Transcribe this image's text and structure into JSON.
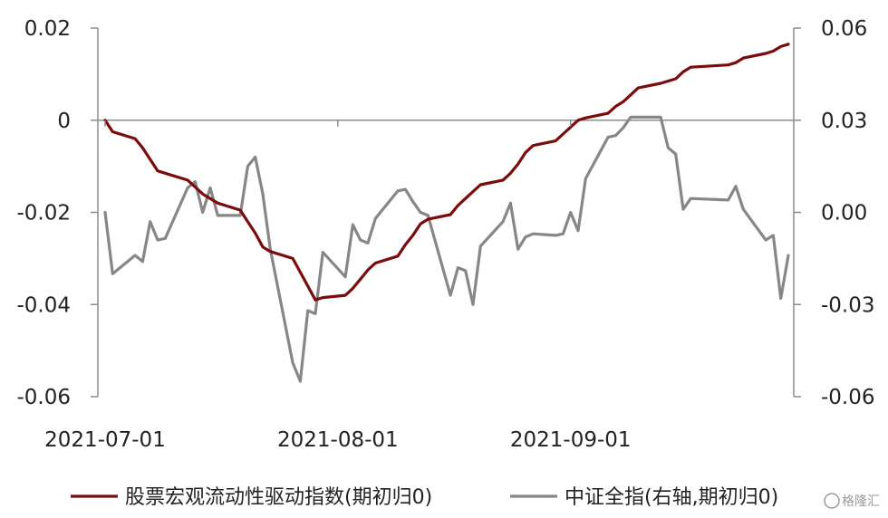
{
  "chart_data": {
    "type": "line",
    "x_tick_labels": [
      "2021-07-01",
      "2021-08-01",
      "2021-09-01"
    ],
    "left_axis": {
      "ylim": [
        -0.06,
        0.02
      ],
      "ticks": [
        "0.02",
        "0",
        "-0.02",
        "-0.04",
        "-0.06"
      ]
    },
    "right_axis": {
      "ylim": [
        -0.06,
        0.06
      ],
      "ticks": [
        "0.06",
        "0.03",
        "0.00",
        "-0.03",
        "-0.06"
      ]
    },
    "grid": false,
    "legend_placement": "bottom",
    "series": [
      {
        "name": "股票宏观流动性驱动指数(期初归0)",
        "axis": "left",
        "color": "#7a0c0c",
        "x": [
          "2021-07-01",
          "2021-07-02",
          "2021-07-05",
          "2021-07-06",
          "2021-07-07",
          "2021-07-08",
          "2021-07-09",
          "2021-07-12",
          "2021-07-13",
          "2021-07-14",
          "2021-07-15",
          "2021-07-16",
          "2021-07-19",
          "2021-07-20",
          "2021-07-21",
          "2021-07-22",
          "2021-07-23",
          "2021-07-26",
          "2021-07-27",
          "2021-07-28",
          "2021-07-29",
          "2021-07-30",
          "2021-08-02",
          "2021-08-03",
          "2021-08-04",
          "2021-08-05",
          "2021-08-06",
          "2021-08-09",
          "2021-08-10",
          "2021-08-11",
          "2021-08-12",
          "2021-08-13",
          "2021-08-16",
          "2021-08-17",
          "2021-08-18",
          "2021-08-19",
          "2021-08-20",
          "2021-08-23",
          "2021-08-24",
          "2021-08-25",
          "2021-08-26",
          "2021-08-27",
          "2021-08-30",
          "2021-08-31",
          "2021-09-01",
          "2021-09-02",
          "2021-09-03",
          "2021-09-06",
          "2021-09-07",
          "2021-09-08",
          "2021-09-09",
          "2021-09-10",
          "2021-09-13",
          "2021-09-14",
          "2021-09-15",
          "2021-09-16",
          "2021-09-17",
          "2021-09-22",
          "2021-09-23",
          "2021-09-24",
          "2021-09-27",
          "2021-09-28",
          "2021-09-29",
          "2021-09-30"
        ],
        "values": [
          0.0,
          -0.0025,
          -0.004,
          -0.006,
          -0.0085,
          -0.011,
          -0.0115,
          -0.013,
          -0.0145,
          -0.016,
          -0.017,
          -0.018,
          -0.0195,
          -0.022,
          -0.0245,
          -0.0275,
          -0.0285,
          -0.03,
          -0.033,
          -0.036,
          -0.039,
          -0.0385,
          -0.038,
          -0.0365,
          -0.0345,
          -0.0325,
          -0.031,
          -0.0295,
          -0.027,
          -0.025,
          -0.0225,
          -0.0215,
          -0.0205,
          -0.0185,
          -0.017,
          -0.0155,
          -0.014,
          -0.013,
          -0.0115,
          -0.0095,
          -0.007,
          -0.0055,
          -0.0045,
          -0.003,
          -0.0015,
          0.0,
          0.0005,
          0.0015,
          0.003,
          0.004,
          0.0055,
          0.007,
          0.008,
          0.0085,
          0.009,
          0.0105,
          0.0115,
          0.012,
          0.0125,
          0.0135,
          0.0145,
          0.015,
          0.016,
          0.0165
        ]
      },
      {
        "name": "中证全指(右轴,期初归0)",
        "axis": "right",
        "color": "#878787",
        "x": [
          "2021-07-01",
          "2021-07-02",
          "2021-07-05",
          "2021-07-06",
          "2021-07-07",
          "2021-07-08",
          "2021-07-09",
          "2021-07-12",
          "2021-07-13",
          "2021-07-14",
          "2021-07-15",
          "2021-07-16",
          "2021-07-19",
          "2021-07-20",
          "2021-07-21",
          "2021-07-22",
          "2021-07-23",
          "2021-07-26",
          "2021-07-27",
          "2021-07-28",
          "2021-07-29",
          "2021-07-30",
          "2021-08-02",
          "2021-08-03",
          "2021-08-04",
          "2021-08-05",
          "2021-08-06",
          "2021-08-09",
          "2021-08-10",
          "2021-08-11",
          "2021-08-12",
          "2021-08-13",
          "2021-08-16",
          "2021-08-17",
          "2021-08-18",
          "2021-08-19",
          "2021-08-20",
          "2021-08-23",
          "2021-08-24",
          "2021-08-25",
          "2021-08-26",
          "2021-08-27",
          "2021-08-30",
          "2021-08-31",
          "2021-09-01",
          "2021-09-02",
          "2021-09-03",
          "2021-09-06",
          "2021-09-07",
          "2021-09-08",
          "2021-09-09",
          "2021-09-10",
          "2021-09-13",
          "2021-09-14",
          "2021-09-15",
          "2021-09-16",
          "2021-09-17",
          "2021-09-22",
          "2021-09-23",
          "2021-09-24",
          "2021-09-27",
          "2021-09-28",
          "2021-09-29",
          "2021-09-30"
        ],
        "values": [
          0.0,
          -0.02,
          -0.014,
          -0.016,
          -0.003,
          -0.009,
          -0.0085,
          0.008,
          0.01,
          0.0,
          0.008,
          -0.001,
          -0.001,
          0.015,
          0.018,
          0.006,
          -0.012,
          -0.049,
          -0.055,
          -0.032,
          -0.033,
          -0.013,
          -0.021,
          -0.004,
          -0.009,
          -0.01,
          -0.002,
          0.007,
          0.0075,
          0.0035,
          0.0,
          -0.001,
          -0.027,
          -0.018,
          -0.019,
          -0.03,
          -0.011,
          -0.003,
          0.003,
          -0.012,
          -0.008,
          -0.007,
          -0.0075,
          -0.007,
          0.0,
          -0.006,
          0.011,
          0.0245,
          0.025,
          0.0275,
          0.031,
          0.031,
          0.031,
          0.021,
          0.019,
          0.001,
          0.0045,
          0.004,
          0.0085,
          0.001,
          -0.009,
          -0.0075,
          -0.028,
          -0.014
        ]
      }
    ]
  },
  "watermark": "格隆汇"
}
